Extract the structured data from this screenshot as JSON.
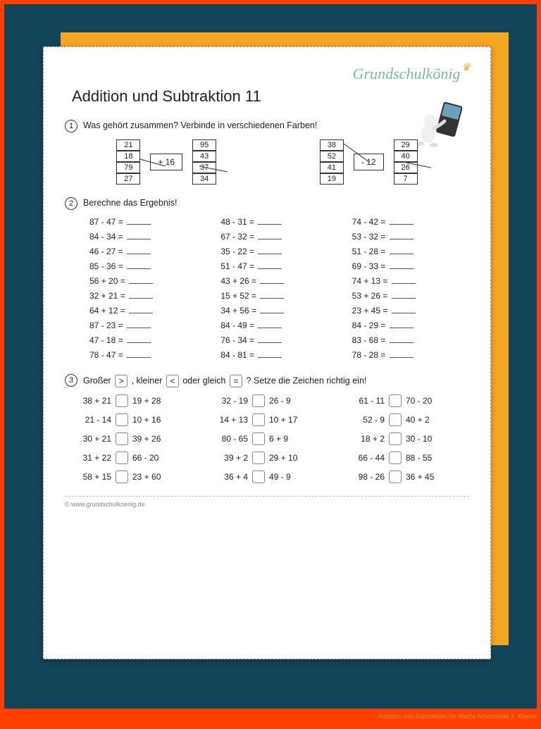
{
  "colors": {
    "outer_border": "#ff4000",
    "frame_bg": "#14445a",
    "orange_card": "#f5a623",
    "paper": "#ffffff",
    "text": "#222222",
    "logo": "#7ab8b0",
    "crown": "#f5a623",
    "footer": "#888888"
  },
  "typography": {
    "body_font": "Comic Sans MS",
    "title_fontsize": 22,
    "body_fontsize": 12.5,
    "logo_fontsize": 22,
    "footer_fontsize": 9
  },
  "logo_text": "Grundschulkönig",
  "title": "Addition und Subtraktion 11",
  "q1": {
    "num": "1",
    "text": "Was gehört zusammen? Verbinde in verschiedenen Farben!",
    "left": {
      "col_a": [
        "21",
        "18",
        "79",
        "27"
      ],
      "op": "+ 16",
      "col_b": [
        "95",
        "43",
        "37",
        "34"
      ]
    },
    "right": {
      "col_a": [
        "38",
        "52",
        "41",
        "19"
      ],
      "op": "- 12",
      "col_b": [
        "29",
        "40",
        "26",
        "7"
      ]
    }
  },
  "q2": {
    "num": "2",
    "text": "Berechne das Ergebnis!",
    "rows": [
      [
        "87 - 47 =",
        "48 - 31 =",
        "74 - 42 ="
      ],
      [
        "84 - 34 =",
        "67 - 32 =",
        "53 - 32 ="
      ],
      [
        "46 - 27 =",
        "35 - 22 =",
        "51 - 28 ="
      ],
      [
        "85 - 36 =",
        "51 - 47 =",
        "69 - 33 ="
      ],
      [
        "56 + 20 =",
        "43 + 26 =",
        "74 + 13 ="
      ],
      [
        "32 + 21 =",
        "15 + 52 =",
        "53 + 26 ="
      ],
      [
        "64 + 12 =",
        "34 + 56 =",
        "23 + 45 ="
      ],
      [
        "87 - 23 =",
        "84 - 49 =",
        "84 - 29 ="
      ],
      [
        "47 - 18 =",
        "76 - 34 =",
        "83 - 68 ="
      ],
      [
        "78 - 47 =",
        "84 - 81 =",
        "78 - 28 ="
      ]
    ]
  },
  "q3": {
    "num": "3",
    "text_parts": [
      "Großer",
      ">",
      ", kleiner",
      "<",
      "oder gleich",
      "=",
      "? Setze die Zeichen richtig ein!"
    ],
    "rows": [
      [
        [
          "38 + 21",
          "19 + 28"
        ],
        [
          "32 - 19",
          "26 -  9"
        ],
        [
          "61 - 11",
          "70 - 20"
        ]
      ],
      [
        [
          "21 - 14",
          "10 + 16"
        ],
        [
          "14 + 13",
          "10 + 17"
        ],
        [
          "52 -  9",
          "40 +  2"
        ]
      ],
      [
        [
          "30 + 21",
          "39 + 26"
        ],
        [
          "80 - 65",
          " 6 +  9"
        ],
        [
          "18 +  2",
          "30 - 10"
        ]
      ],
      [
        [
          "31 + 22",
          "66 - 20"
        ],
        [
          "39 +  2",
          "29 + 10"
        ],
        [
          "66 - 44",
          "88 - 55"
        ]
      ],
      [
        [
          "58 + 15",
          "23 + 60"
        ],
        [
          "36 +  4",
          "49 -  9"
        ],
        [
          "98 - 26",
          "36 + 45"
        ]
      ]
    ]
  },
  "footer": "© www.grundschulkoenig.de",
  "caption": "Addition und Subtraktion für Mathe Arbeitsblatt 2. Klasse"
}
